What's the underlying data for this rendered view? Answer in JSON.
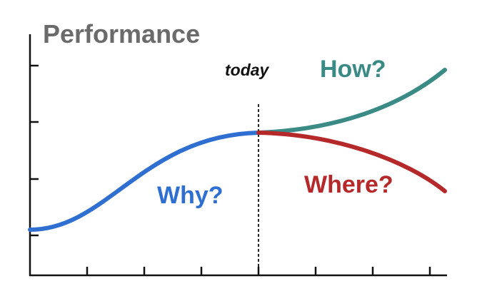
{
  "y_axis_label": "Performance",
  "marker_label": "today",
  "labels": {
    "past": "Why?",
    "future_up": "How?",
    "future_down": "Where?"
  },
  "colors": {
    "past": "#2f6fd1",
    "future_up": "#3a8b86",
    "future_down": "#b5292a",
    "axis": "#111111",
    "y_label": "#6b6b6b"
  }
}
